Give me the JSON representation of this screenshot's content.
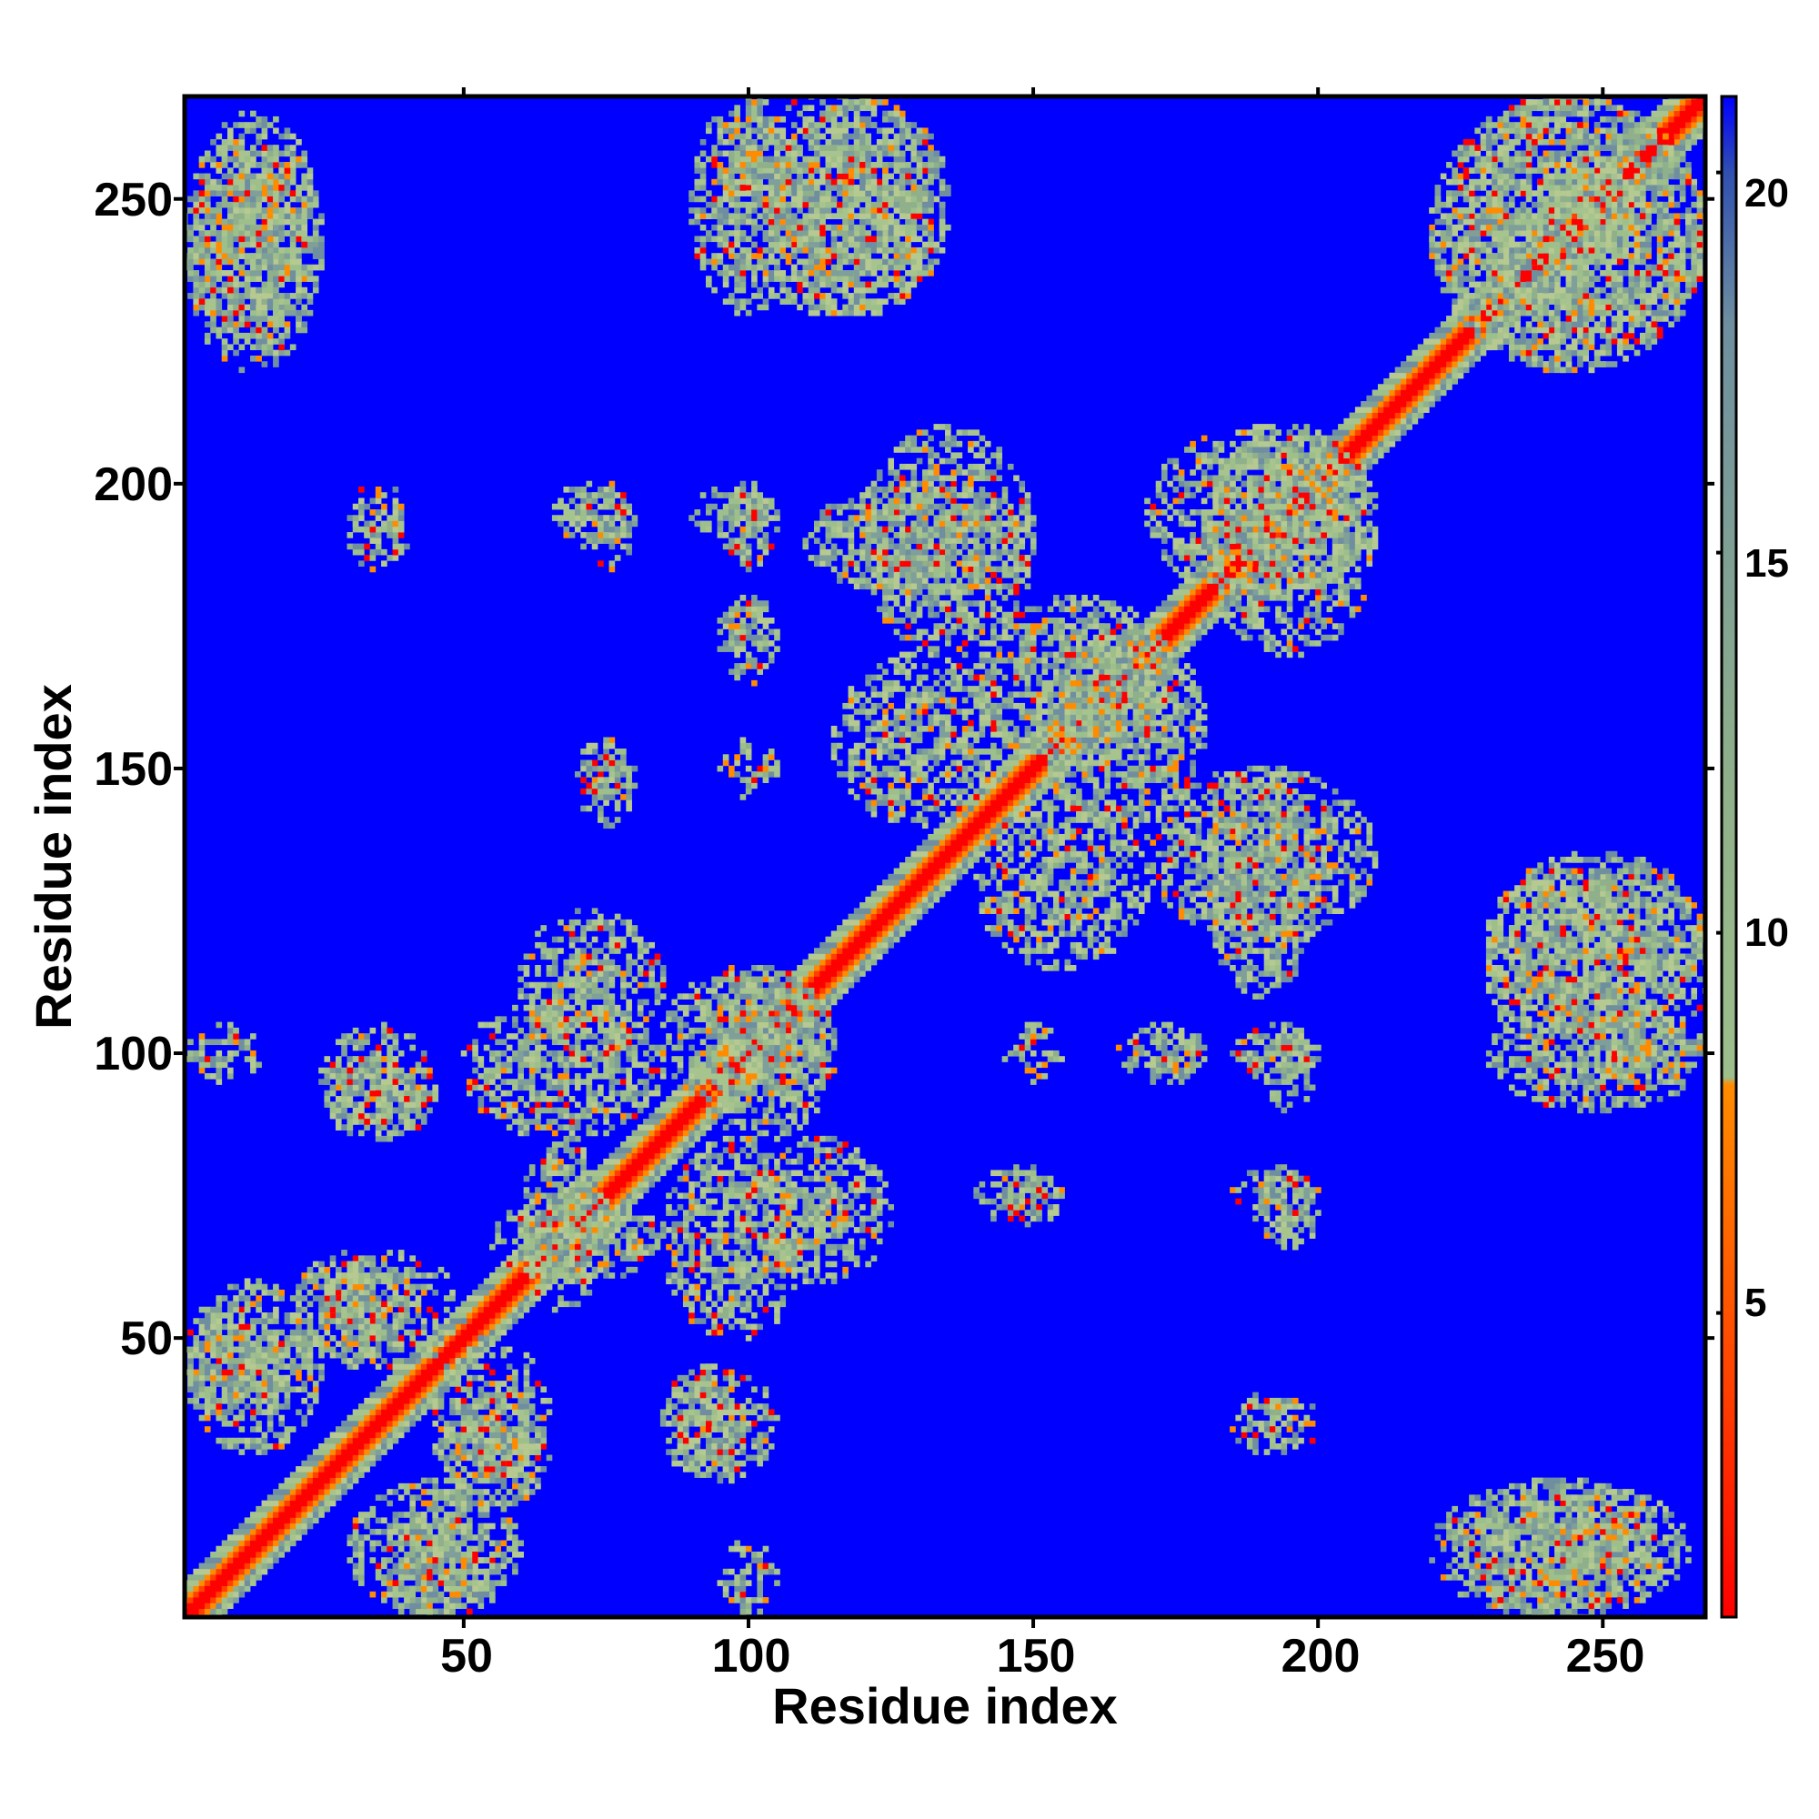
{
  "chart_data": {
    "type": "heatmap",
    "title": "",
    "xlabel": "Residue index",
    "ylabel": "Residue index",
    "xlim": [
      1,
      268
    ],
    "ylim": [
      1,
      268
    ],
    "x_ticks": [
      "50",
      "100",
      "150",
      "200",
      "250"
    ],
    "y_ticks": [
      "50",
      "100",
      "150",
      "200",
      "250"
    ],
    "colorbar": {
      "range": [
        1,
        21
      ],
      "ticks": [
        "5",
        "10",
        "15",
        "20"
      ],
      "colors": [
        "#ff0000",
        "#ff4000",
        "#ff8c00",
        "#9dbf8c",
        "#8fb08a",
        "#6f8fa0",
        "#3050b0",
        "#0000ff"
      ],
      "stops": [
        1,
        4,
        8,
        8.1,
        12,
        18,
        20,
        21
      ]
    },
    "background_color": "#0000ff",
    "diagonal_color": "#ff0000",
    "near_contact_color": "#ff8c00",
    "mid_color": "#9dbf8c",
    "contact_regions": [
      {
        "x": [
          1,
          268
        ],
        "y": [
          1,
          268
        ],
        "kind": "diagonal"
      },
      {
        "x": [
          1,
          25
        ],
        "y": [
          225,
          260
        ],
        "kind": "block"
      },
      {
        "x": [
          90,
          110
        ],
        "y": [
          230,
          268
        ],
        "kind": "block"
      },
      {
        "x": [
          105,
          135
        ],
        "y": [
          230,
          268
        ],
        "kind": "block"
      },
      {
        "x": [
          220,
          268
        ],
        "y": [
          220,
          268
        ],
        "kind": "block"
      },
      {
        "x": [
          170,
          210
        ],
        "y": [
          180,
          210
        ],
        "kind": "block"
      },
      {
        "x": [
          120,
          150
        ],
        "y": [
          170,
          210
        ],
        "kind": "block"
      },
      {
        "x": [
          150,
          180
        ],
        "y": [
          140,
          175
        ],
        "kind": "block"
      },
      {
        "x": [
          180,
          200
        ],
        "y": [
          110,
          150
        ],
        "kind": "block"
      },
      {
        "x": [
          140,
          170
        ],
        "y": [
          115,
          145
        ],
        "kind": "block"
      },
      {
        "x": [
          90,
          115
        ],
        "y": [
          85,
          115
        ],
        "kind": "block"
      },
      {
        "x": [
          25,
          45
        ],
        "y": [
          85,
          105
        ],
        "kind": "block"
      },
      {
        "x": [
          50,
          85
        ],
        "y": [
          85,
          110
        ],
        "kind": "block"
      },
      {
        "x": [
          20,
          40
        ],
        "y": [
          45,
          65
        ],
        "kind": "block"
      },
      {
        "x": [
          45,
          65
        ],
        "y": [
          25,
          50
        ],
        "kind": "block"
      },
      {
        "x": [
          85,
          100
        ],
        "y": [
          25,
          45
        ],
        "kind": "block"
      },
      {
        "x": [
          1,
          20
        ],
        "y": [
          35,
          55
        ],
        "kind": "block"
      },
      {
        "x": [
          30,
          60
        ],
        "y": [
          1,
          25
        ],
        "kind": "block"
      },
      {
        "x": [
          220,
          265
        ],
        "y": [
          1,
          25
        ],
        "kind": "block"
      },
      {
        "x": [
          230,
          268
        ],
        "y": [
          95,
          135
        ],
        "kind": "block"
      },
      {
        "x": [
          1,
          15
        ],
        "y": [
          95,
          105
        ],
        "kind": "block"
      },
      {
        "x": [
          100,
          125
        ],
        "y": [
          60,
          85
        ],
        "kind": "block"
      },
      {
        "x": [
          55,
          85
        ],
        "y": [
          60,
          75
        ],
        "kind": "block"
      },
      {
        "x": [
          185,
          200
        ],
        "y": [
          95,
          105
        ],
        "kind": "spot"
      },
      {
        "x": [
          185,
          200
        ],
        "y": [
          70,
          80
        ],
        "kind": "spot"
      },
      {
        "x": [
          185,
          195
        ],
        "y": [
          30,
          40
        ],
        "kind": "spot"
      },
      {
        "x": [
          140,
          155
        ],
        "y": [
          70,
          80
        ],
        "kind": "spot"
      },
      {
        "x": [
          30,
          40
        ],
        "y": [
          190,
          200
        ],
        "kind": "spot"
      },
      {
        "x": [
          65,
          80
        ],
        "y": [
          190,
          200
        ],
        "kind": "spot"
      },
      {
        "x": [
          90,
          105
        ],
        "y": [
          190,
          200
        ],
        "kind": "spot"
      },
      {
        "x": [
          70,
          80
        ],
        "y": [
          145,
          155
        ],
        "kind": "spot"
      },
      {
        "x": [
          95,
          105
        ],
        "y": [
          145,
          155
        ],
        "kind": "spot"
      },
      {
        "x": [
          95,
          105
        ],
        "y": [
          170,
          180
        ],
        "kind": "spot"
      },
      {
        "x": [
          165,
          180
        ],
        "y": [
          95,
          105
        ],
        "kind": "spot"
      }
    ]
  }
}
